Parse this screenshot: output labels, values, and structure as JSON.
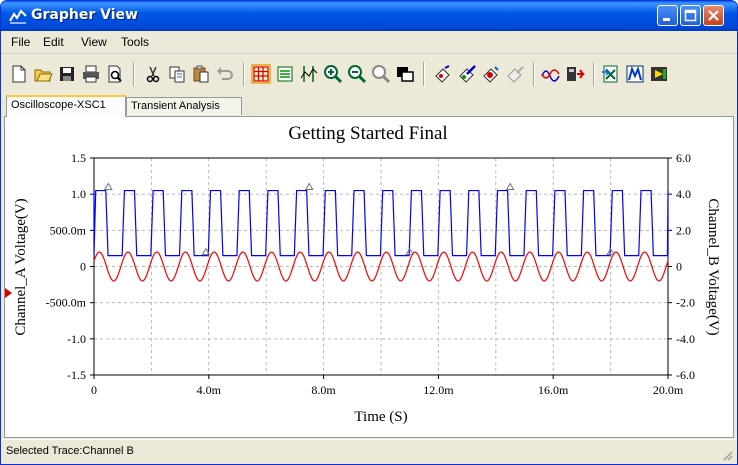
{
  "window": {
    "title": "Grapher View"
  },
  "menu": {
    "items": [
      "File",
      "Edit",
      "View",
      "Tools"
    ]
  },
  "toolbar": {
    "icons": [
      "new-icon",
      "open-icon",
      "save-icon",
      "print-icon",
      "print-preview-icon",
      "cut-icon",
      "copy-icon",
      "paste-icon",
      "undo-icon",
      "toggle-grid-icon",
      "toggle-legend-icon",
      "toggle-cursors-icon",
      "zoom-in-icon",
      "zoom-out-icon",
      "zoom-full-icon",
      "overlay-traces-icon",
      "select-marks-icon",
      "properties-icon",
      "reverse-colors-icon",
      "export-icon",
      "add-trace-icon",
      "post-process-icon",
      "excel-export-icon",
      "mathcad-export-icon",
      "lvm-export-icon"
    ]
  },
  "tabs": [
    {
      "label": "Oscilloscope-XSC1",
      "active": true
    },
    {
      "label": "Transient Analysis",
      "active": false
    }
  ],
  "status": {
    "text": "Selected Trace:Channel B"
  },
  "chart_data": {
    "type": "line",
    "title": "Getting Started Final",
    "xlabel": "Time (S)",
    "ylabel": "Channel_A Voltage(V)",
    "y2label": "Channel_B Voltage(V)",
    "xlim": [
      0,
      0.02
    ],
    "ylim": [
      -1.5,
      1.5
    ],
    "y2lim": [
      -6,
      6
    ],
    "x_ticks": [
      "0",
      "4.0m",
      "8.0m",
      "12.0m",
      "16.0m",
      "20.0m"
    ],
    "y_ticks": [
      "1.5",
      "1.0",
      "500.0m",
      "0",
      "-500.0m",
      "-1.0",
      "-1.5"
    ],
    "y2_ticks": [
      "6.0",
      "4.0",
      "2.0",
      "0",
      "-2.0",
      "-4.0",
      "-6.0"
    ],
    "grid": true,
    "series": [
      {
        "name": "Channel A",
        "axis": "left",
        "color": "#FF0000",
        "waveform": "sine",
        "amplitude": 0.2,
        "frequency": 1000
      },
      {
        "name": "Channel B",
        "axis": "right",
        "color": "#0000FF",
        "waveform": "pulse",
        "low": 0.6,
        "high": 4.2,
        "frequency": 1000,
        "duty": 0.43
      }
    ],
    "markers": {
      "symbol": "△"
    }
  }
}
